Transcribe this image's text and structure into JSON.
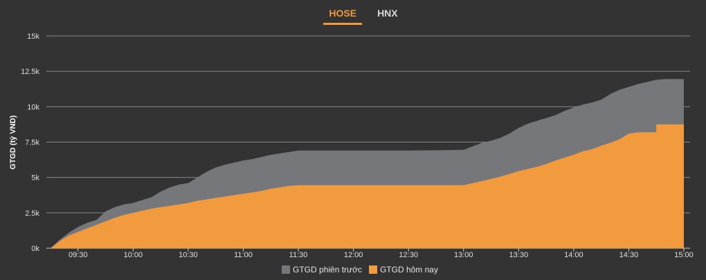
{
  "tabs": [
    {
      "label": "HOSE",
      "active": true
    },
    {
      "label": "HNX",
      "active": false
    }
  ],
  "chart_data": {
    "type": "area",
    "ylabel": "GTGD (tỷ VND)",
    "xlabel": "",
    "title": "",
    "ylim": [
      0,
      15000
    ],
    "y_ticks": [
      0,
      2500,
      5000,
      7500,
      10000,
      12500,
      15000
    ],
    "y_tick_labels": [
      "0k",
      "2.5k",
      "5k",
      "7.5k",
      "10k",
      "12.5k",
      "15k"
    ],
    "x_range": [
      "09:15",
      "15:00"
    ],
    "x_ticks": [
      "09:30",
      "10:00",
      "10:30",
      "11:00",
      "11:30",
      "12:00",
      "12:30",
      "13:00",
      "13:30",
      "14:00",
      "14:30",
      "15:00"
    ],
    "grid": true,
    "legend_position": "bottom",
    "colors": {
      "previous": "#76777b",
      "today": "#f19a3e"
    },
    "series": [
      {
        "name": "GTGD phiên trước",
        "color": "#76777b",
        "x": [
          "09:15",
          "09:20",
          "09:25",
          "09:30",
          "09:35",
          "09:40",
          "09:45",
          "09:50",
          "09:55",
          "10:00",
          "10:05",
          "10:10",
          "10:15",
          "10:20",
          "10:25",
          "10:30",
          "10:35",
          "10:40",
          "10:45",
          "10:50",
          "10:55",
          "11:00",
          "11:05",
          "11:10",
          "11:15",
          "11:20",
          "11:25",
          "11:30",
          "12:00",
          "12:30",
          "13:00",
          "13:05",
          "13:10",
          "13:15",
          "13:20",
          "13:25",
          "13:30",
          "13:35",
          "13:40",
          "13:45",
          "13:50",
          "13:55",
          "14:00",
          "14:05",
          "14:10",
          "14:15",
          "14:20",
          "14:25",
          "14:30",
          "14:35",
          "14:40",
          "14:45",
          "14:50",
          "14:55",
          "15:00"
        ],
        "values": [
          0,
          600,
          1100,
          1500,
          1800,
          2000,
          2600,
          2900,
          3100,
          3200,
          3400,
          3600,
          4000,
          4300,
          4500,
          4600,
          5000,
          5400,
          5700,
          5900,
          6050,
          6200,
          6300,
          6450,
          6600,
          6700,
          6800,
          6900,
          6900,
          6900,
          6950,
          7200,
          7450,
          7600,
          7800,
          8100,
          8500,
          8800,
          9000,
          9200,
          9400,
          9700,
          9950,
          10150,
          10300,
          10500,
          10900,
          11200,
          11400,
          11600,
          11750,
          11900,
          11950,
          11950,
          11950
        ]
      },
      {
        "name": "GTGD hôm nay",
        "color": "#f19a3e",
        "x": [
          "09:15",
          "09:20",
          "09:25",
          "09:30",
          "09:35",
          "09:40",
          "09:45",
          "09:50",
          "09:55",
          "10:00",
          "10:05",
          "10:10",
          "10:15",
          "10:20",
          "10:25",
          "10:30",
          "10:35",
          "10:40",
          "10:45",
          "10:50",
          "10:55",
          "11:00",
          "11:05",
          "11:10",
          "11:15",
          "11:20",
          "11:25",
          "11:30",
          "12:00",
          "12:30",
          "13:00",
          "13:05",
          "13:10",
          "13:15",
          "13:20",
          "13:25",
          "13:30",
          "13:35",
          "13:40",
          "13:45",
          "13:50",
          "13:55",
          "14:00",
          "14:05",
          "14:10",
          "14:15",
          "14:20",
          "14:25",
          "14:30",
          "14:35",
          "14:40",
          "14:45",
          "14:45",
          "14:50",
          "14:55",
          "15:00"
        ],
        "values": [
          0,
          500,
          900,
          1150,
          1400,
          1650,
          1900,
          2150,
          2350,
          2500,
          2650,
          2800,
          2900,
          3000,
          3100,
          3200,
          3350,
          3450,
          3550,
          3650,
          3750,
          3850,
          3950,
          4050,
          4200,
          4300,
          4400,
          4450,
          4450,
          4450,
          4450,
          4600,
          4750,
          4900,
          5050,
          5250,
          5450,
          5600,
          5750,
          5950,
          6200,
          6400,
          6600,
          6850,
          7000,
          7250,
          7450,
          7700,
          8100,
          8200,
          8200,
          8200,
          8750,
          8750,
          8750,
          8750
        ]
      }
    ]
  }
}
